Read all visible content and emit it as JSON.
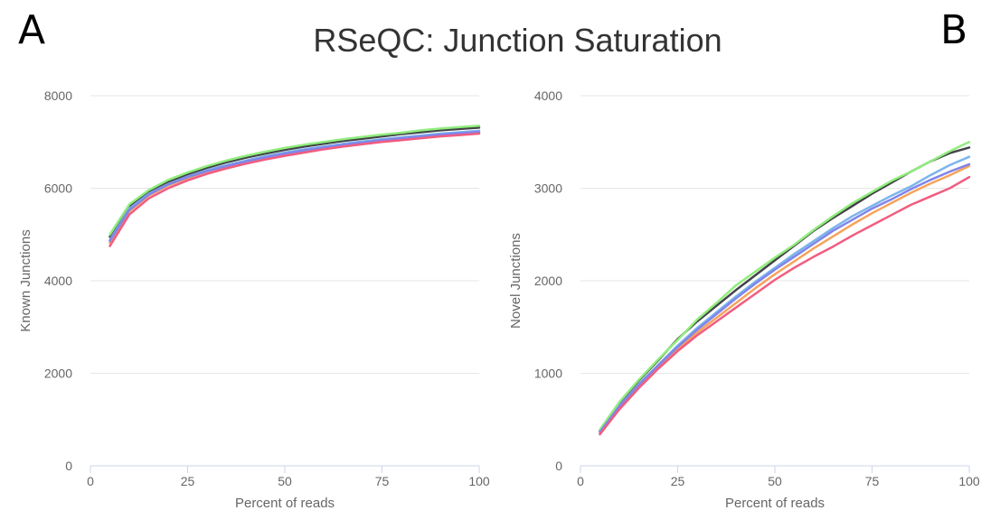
{
  "page": {
    "title": "RSeQC: Junction Saturation",
    "panel_a_letter": "A",
    "panel_b_letter": "B"
  },
  "chart_data": [
    {
      "type": "line",
      "panel": "A",
      "xlabel": "Percent of reads",
      "ylabel": "Known Junctions",
      "xlim": [
        0,
        100
      ],
      "ylim": [
        0,
        8000
      ],
      "xticks": [
        "0",
        "25",
        "50",
        "75",
        "100"
      ],
      "yticks": [
        "0",
        "2000",
        "4000",
        "6000",
        "8000"
      ],
      "grid": true,
      "x": [
        5,
        10,
        15,
        20,
        25,
        30,
        35,
        40,
        45,
        50,
        55,
        60,
        65,
        70,
        75,
        80,
        85,
        90,
        95,
        100
      ],
      "series": [
        {
          "color": "#434348",
          "values": [
            4950,
            5600,
            5920,
            6140,
            6300,
            6440,
            6560,
            6660,
            6750,
            6830,
            6900,
            6960,
            7020,
            7070,
            7120,
            7170,
            7210,
            7250,
            7280,
            7310
          ]
        },
        {
          "color": "#7cb5ec",
          "values": [
            4880,
            5560,
            5880,
            6090,
            6250,
            6390,
            6500,
            6600,
            6690,
            6770,
            6840,
            6900,
            6960,
            7010,
            7060,
            7100,
            7140,
            7180,
            7210,
            7240
          ]
        },
        {
          "color": "#90ed7d",
          "values": [
            5000,
            5650,
            5960,
            6180,
            6340,
            6480,
            6600,
            6700,
            6790,
            6870,
            6940,
            7000,
            7060,
            7110,
            7160,
            7200,
            7250,
            7290,
            7320,
            7350
          ]
        },
        {
          "color": "#f7a35c",
          "values": [
            4820,
            5500,
            5840,
            6060,
            6220,
            6360,
            6470,
            6570,
            6650,
            6730,
            6800,
            6860,
            6920,
            6970,
            7020,
            7060,
            7100,
            7140,
            7170,
            7200
          ]
        },
        {
          "color": "#8085e9",
          "values": [
            4860,
            5530,
            5860,
            6080,
            6240,
            6370,
            6480,
            6580,
            6670,
            6750,
            6820,
            6880,
            6940,
            6990,
            7040,
            7080,
            7120,
            7160,
            7190,
            7220
          ]
        },
        {
          "color": "#f15c80",
          "values": [
            4750,
            5430,
            5780,
            6000,
            6170,
            6310,
            6430,
            6530,
            6620,
            6700,
            6770,
            6840,
            6900,
            6950,
            7000,
            7040,
            7080,
            7120,
            7150,
            7180
          ]
        }
      ]
    },
    {
      "type": "line",
      "panel": "B",
      "xlabel": "Percent of reads",
      "ylabel": "Novel Junctions",
      "xlim": [
        0,
        100
      ],
      "ylim": [
        0,
        4000
      ],
      "xticks": [
        "0",
        "25",
        "50",
        "75",
        "100"
      ],
      "yticks": [
        "0",
        "1000",
        "2000",
        "3000",
        "4000"
      ],
      "grid": true,
      "x": [
        5,
        10,
        15,
        20,
        25,
        30,
        35,
        40,
        45,
        50,
        55,
        60,
        65,
        70,
        75,
        80,
        85,
        90,
        95,
        100
      ],
      "series": [
        {
          "color": "#434348",
          "values": [
            380,
            680,
            920,
            1140,
            1370,
            1560,
            1730,
            1900,
            2060,
            2220,
            2380,
            2540,
            2680,
            2810,
            2940,
            3060,
            3180,
            3290,
            3380,
            3440
          ]
        },
        {
          "color": "#7cb5ec",
          "values": [
            370,
            650,
            880,
            1090,
            1300,
            1490,
            1660,
            1830,
            1990,
            2140,
            2290,
            2430,
            2570,
            2700,
            2810,
            2920,
            3020,
            3140,
            3250,
            3340
          ]
        },
        {
          "color": "#90ed7d",
          "values": [
            390,
            690,
            930,
            1150,
            1360,
            1580,
            1760,
            1950,
            2100,
            2250,
            2390,
            2550,
            2700,
            2840,
            2960,
            3080,
            3180,
            3290,
            3400,
            3500
          ]
        },
        {
          "color": "#f7a35c",
          "values": [
            350,
            630,
            860,
            1070,
            1260,
            1440,
            1600,
            1760,
            1920,
            2070,
            2210,
            2350,
            2480,
            2610,
            2730,
            2840,
            2950,
            3050,
            3140,
            3240
          ]
        },
        {
          "color": "#8085e9",
          "values": [
            365,
            645,
            875,
            1085,
            1285,
            1470,
            1640,
            1810,
            1970,
            2120,
            2260,
            2400,
            2540,
            2660,
            2780,
            2880,
            2990,
            3090,
            3180,
            3260
          ]
        },
        {
          "color": "#f15c80",
          "values": [
            340,
            610,
            840,
            1050,
            1240,
            1410,
            1560,
            1710,
            1860,
            2010,
            2140,
            2260,
            2370,
            2490,
            2600,
            2710,
            2820,
            2910,
            3000,
            3120
          ]
        }
      ]
    }
  ]
}
